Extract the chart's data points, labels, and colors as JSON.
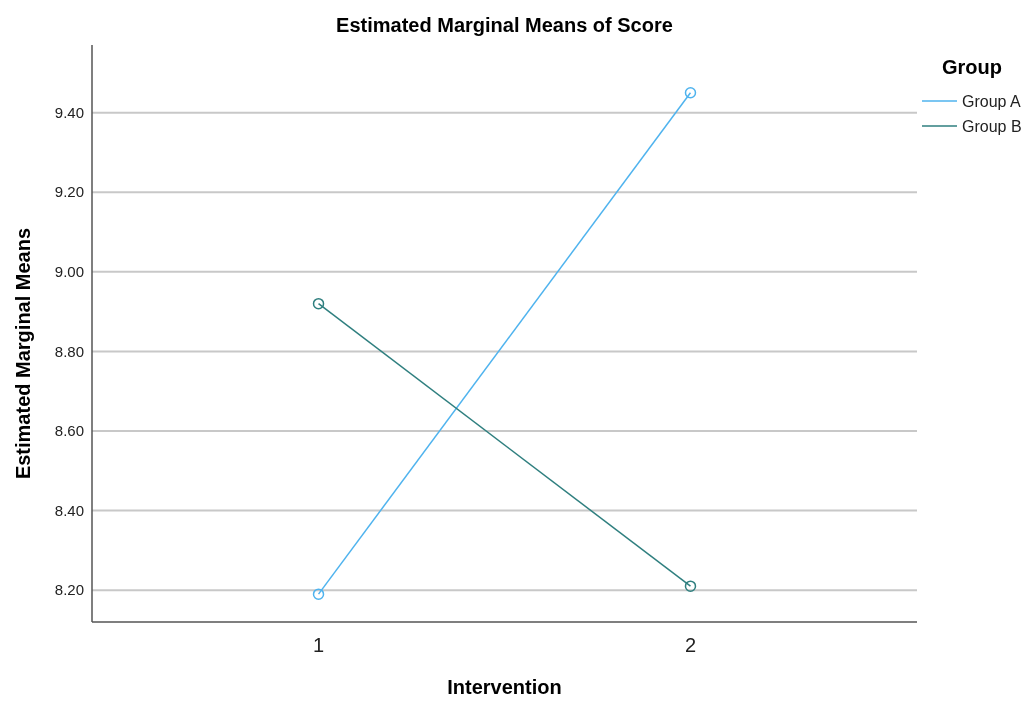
{
  "chart_data": {
    "type": "line",
    "title": "Estimated Marginal Means of Score",
    "xlabel": "Intervention",
    "ylabel": "Estimated Marginal Means",
    "legend_title": "Group",
    "categories": [
      "1",
      "2"
    ],
    "series": [
      {
        "name": "Group A",
        "color": "#4fb3ee",
        "values": [
          8.19,
          9.45
        ]
      },
      {
        "name": "Group B",
        "color": "#2f7f7f",
        "values": [
          8.92,
          8.21
        ]
      }
    ],
    "ylim": [
      8.12,
      9.57
    ],
    "yticks": [
      {
        "value": 8.2,
        "label": "8.20"
      },
      {
        "value": 8.4,
        "label": "8.40"
      },
      {
        "value": 8.6,
        "label": "8.60"
      },
      {
        "value": 8.8,
        "label": "8.80"
      },
      {
        "value": 9.0,
        "label": "9.00"
      },
      {
        "value": 9.2,
        "label": "9.20"
      },
      {
        "value": 9.4,
        "label": "9.40"
      }
    ],
    "grid": "y",
    "legend": "top right",
    "marker": "circle"
  }
}
